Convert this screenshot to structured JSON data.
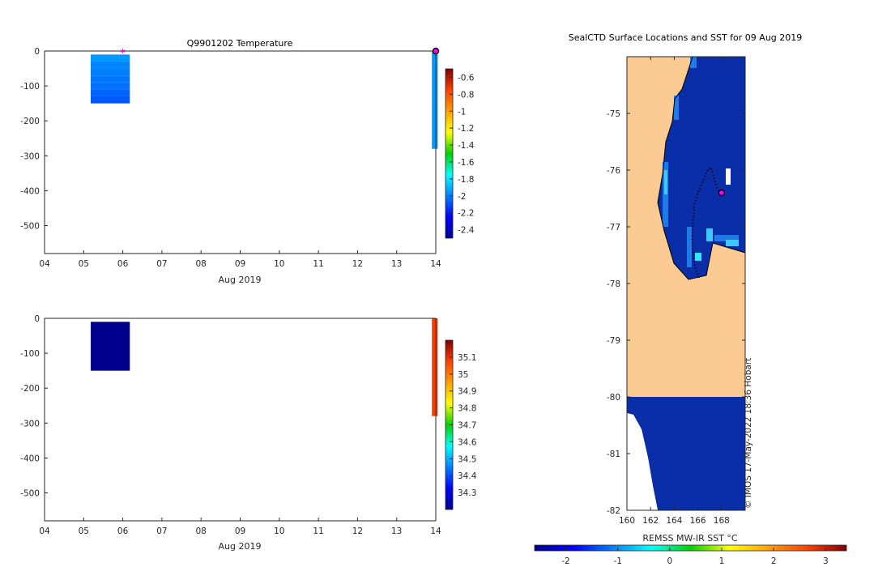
{
  "chart_data": [
    {
      "type": "heatmap",
      "title": "Q9901202  Temperature",
      "xlabel": "Aug 2019",
      "xticks": [
        "04",
        "05",
        "06",
        "07",
        "08",
        "09",
        "10",
        "11",
        "12",
        "13",
        "14"
      ],
      "xlim": [
        4,
        14
      ],
      "ylim": [
        -580,
        0
      ],
      "yticks": [
        0,
        -100,
        -200,
        -300,
        -400,
        -500
      ],
      "colorbar": {
        "range": [
          -2.5,
          -0.5
        ],
        "ticks": [
          -0.6,
          -0.8,
          -1,
          -1.2,
          -1.4,
          -1.6,
          -1.8,
          -2,
          -2.2,
          -2.4
        ],
        "tick_labels": [
          "-0.6",
          "-0.8",
          "-1",
          "-1.2",
          "-1.4",
          "-1.6",
          "-1.8",
          "-2",
          "-2.2",
          "-2.4"
        ]
      },
      "profiles": [
        {
          "x_start": 5.18,
          "x_end": 6.18,
          "cells": [
            {
              "top": -10,
              "bottom": -30,
              "value": -1.95
            },
            {
              "top": -30,
              "bottom": -50,
              "value": -1.99
            },
            {
              "top": -50,
              "bottom": -70,
              "value": -2.0
            },
            {
              "top": -70,
              "bottom": -90,
              "value": -2.02
            },
            {
              "top": -90,
              "bottom": -110,
              "value": -2.03
            },
            {
              "top": -110,
              "bottom": -130,
              "value": -2.05
            },
            {
              "top": -130,
              "bottom": -150,
              "value": -2.08
            }
          ]
        },
        {
          "x_start": 13.9,
          "x_end": 14.05,
          "cells": [
            {
              "top": 0,
              "bottom": -280,
              "value": -1.95
            }
          ]
        }
      ],
      "markers": [
        {
          "x": 6.0,
          "y": 0,
          "shape": "star",
          "color": "#ff00ff"
        },
        {
          "x": 14.0,
          "y": 0,
          "shape": "circle",
          "color": "#ff00ff"
        }
      ]
    },
    {
      "type": "heatmap",
      "title": "",
      "xlabel": "Aug 2019",
      "xticks": [
        "04",
        "05",
        "06",
        "07",
        "08",
        "09",
        "10",
        "11",
        "12",
        "13",
        "14"
      ],
      "xlim": [
        4,
        14
      ],
      "ylim": [
        -580,
        0
      ],
      "yticks": [
        0,
        -100,
        -200,
        -300,
        -400,
        -500
      ],
      "colorbar": {
        "range": [
          34.2,
          35.2
        ],
        "ticks": [
          35.1,
          35,
          34.9,
          34.8,
          34.7,
          34.6,
          34.5,
          34.4,
          34.3
        ],
        "tick_labels": [
          "35.1",
          "35",
          "34.9",
          "34.8",
          "34.7",
          "34.6",
          "34.5",
          "34.4",
          "34.3"
        ]
      },
      "profiles": [
        {
          "x_start": 5.18,
          "x_end": 6.18,
          "cells": [
            {
              "top": -10,
              "bottom": -150,
              "value": 34.2
            }
          ]
        },
        {
          "x_start": 13.9,
          "x_end": 14.05,
          "cells": [
            {
              "top": 0,
              "bottom": -280,
              "value": 35.08
            }
          ]
        }
      ],
      "markers": []
    },
    {
      "type": "map",
      "title": "SealCTD Surface Locations and SST for 09 Aug 2019",
      "xlim": [
        160,
        170
      ],
      "ylim": [
        -82,
        -74
      ],
      "xticks": [
        160,
        162,
        164,
        166,
        168
      ],
      "yticks": [
        -75,
        -76,
        -77,
        -78,
        -79,
        -80,
        -81,
        -82
      ],
      "colorbar": {
        "label": "REMSS MW-IR SST °C",
        "range": [
          -2.6,
          3.4
        ],
        "ticks": [
          -2,
          -1,
          0,
          1,
          2,
          3
        ],
        "tick_labels": [
          "-2",
          "-1",
          "0",
          "1",
          "2",
          "3"
        ]
      },
      "colors": {
        "land": "#fccb94",
        "sea": "#0a2ea8",
        "missing": "#ffffff"
      },
      "credit": "© IMOS 17-May-2022 18:36 Hobart",
      "track": [
        [
          166.1,
          -77.9
        ],
        [
          165.8,
          -77.75
        ],
        [
          165.6,
          -77.5
        ],
        [
          165.5,
          -77.2
        ],
        [
          165.6,
          -76.9
        ],
        [
          165.7,
          -76.6
        ],
        [
          166.0,
          -76.4
        ],
        [
          166.4,
          -76.2
        ],
        [
          166.7,
          -76.05
        ],
        [
          167.1,
          -75.95
        ],
        [
          167.3,
          -76.1
        ],
        [
          167.6,
          -76.3
        ],
        [
          167.9,
          -76.4
        ]
      ],
      "current_position": {
        "lon": 168.0,
        "lat": -76.4
      }
    }
  ]
}
